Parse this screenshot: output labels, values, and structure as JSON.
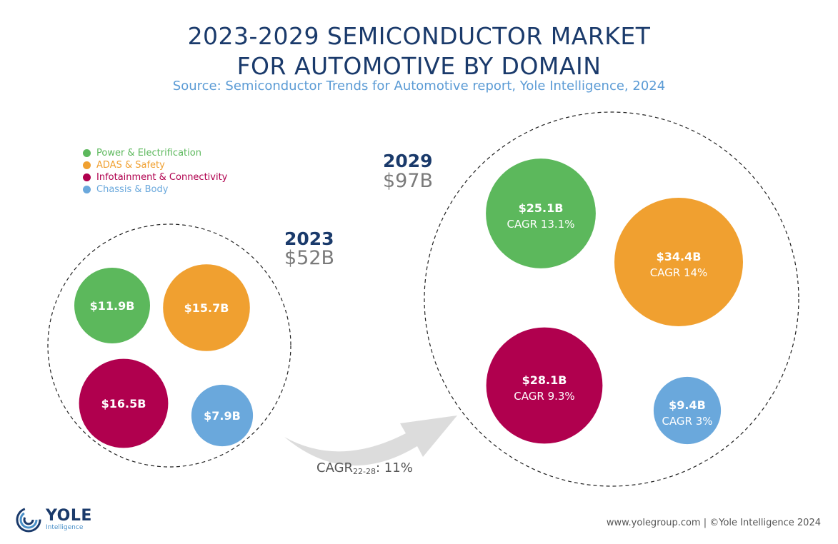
{
  "header": {
    "title_line1": "2023-2029 SEMICONDUCTOR MARKET",
    "title_line2": "FOR AUTOMOTIVE BY DOMAIN",
    "source": "Source: Semiconductor Trends for Automotive report, Yole Intelligence, 2024"
  },
  "legend": [
    {
      "label": "Power & Electrification",
      "color": "#5cb85c"
    },
    {
      "label": "ADAS & Safety",
      "color": "#f0a030"
    },
    {
      "label": "Infotainment & Connectivity",
      "color": "#b0004e"
    },
    {
      "label": "Chassis & Body",
      "color": "#6aa8dc"
    }
  ],
  "cagr_overall": {
    "prefix": "CAGR",
    "sub": "22-28",
    "suffix": ": 11%"
  },
  "footer": {
    "text": "www.yolegroup.com | ©Yole Intelligence 2024"
  },
  "logo": {
    "name": "YOLE",
    "sub": "Intelligence"
  },
  "chart_data": {
    "type": "bubble",
    "groups": [
      {
        "year": "2023",
        "total": "$52B",
        "bubbles": [
          {
            "domain": "Power & Electrification",
            "value": 11.9,
            "label": "$11.9B",
            "cagr": ""
          },
          {
            "domain": "ADAS & Safety",
            "value": 15.7,
            "label": "$15.7B",
            "cagr": ""
          },
          {
            "domain": "Infotainment & Connectivity",
            "value": 16.5,
            "label": "$16.5B",
            "cagr": ""
          },
          {
            "domain": "Chassis & Body",
            "value": 7.9,
            "label": "$7.9B",
            "cagr": ""
          }
        ]
      },
      {
        "year": "2029",
        "total": "$97B",
        "bubbles": [
          {
            "domain": "Power & Electrification",
            "value": 25.1,
            "label": "$25.1B",
            "cagr": "CAGR 13.1%"
          },
          {
            "domain": "ADAS & Safety",
            "value": 34.4,
            "label": "$34.4B",
            "cagr": "CAGR 14%"
          },
          {
            "domain": "Infotainment & Connectivity",
            "value": 28.1,
            "label": "$28.1B",
            "cagr": "CAGR 9.3%"
          },
          {
            "domain": "Chassis & Body",
            "value": 9.4,
            "label": "$9.4B",
            "cagr": "CAGR 3%"
          }
        ]
      }
    ]
  }
}
